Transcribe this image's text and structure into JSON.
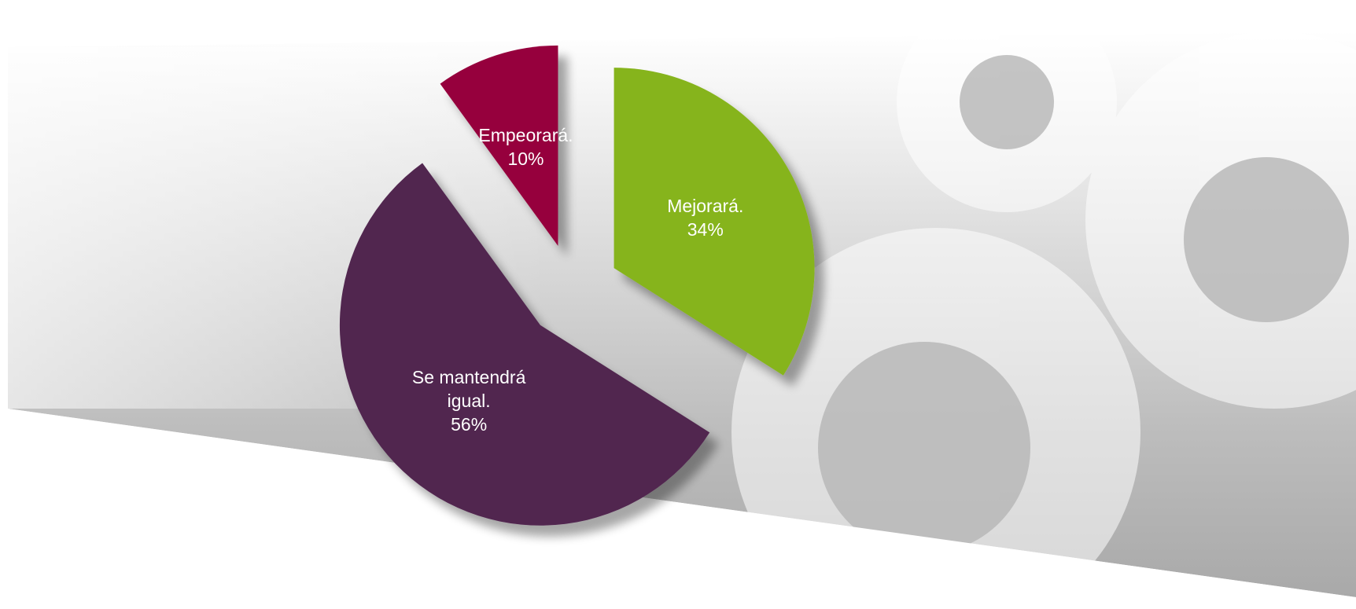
{
  "chart_data": {
    "type": "pie",
    "categories": [
      "Mejorará.",
      "Se mantendrá igual.",
      "Empeorará."
    ],
    "values": [
      34,
      56,
      10
    ],
    "value_labels": [
      "34%",
      "56%",
      "10%"
    ],
    "colors": [
      "#86b41f",
      "#51264f",
      "#96003c"
    ]
  }
}
